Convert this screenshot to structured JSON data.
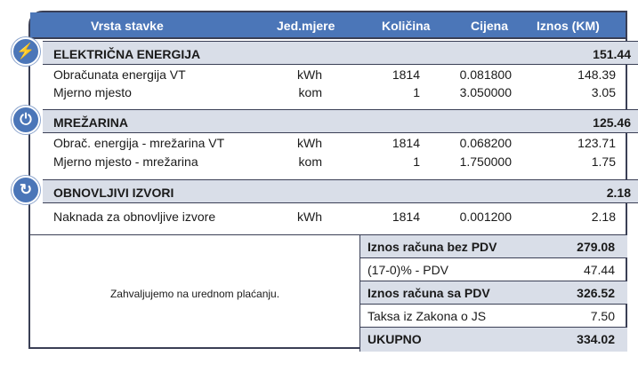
{
  "header": {
    "item": "Vrsta stavke",
    "unit": "Jed.mjere",
    "qty": "Količina",
    "price": "Cijena",
    "amount": "Iznos (KM)"
  },
  "sections": [
    {
      "title": "ELEKTRIČNA ENERGIJA",
      "total": "151.44",
      "icon": "lightning-icon",
      "rows": [
        {
          "name": "Obračunata energija VT",
          "unit": "kWh",
          "qty": "1814",
          "price": "0.081800",
          "amount": "148.39"
        },
        {
          "name": "Mjerno mjesto",
          "unit": "kom",
          "qty": "1",
          "price": "3.050000",
          "amount": "3.05"
        }
      ]
    },
    {
      "title": "MREŽARINA",
      "total": "125.46",
      "icon": "plug-icon",
      "rows": [
        {
          "name": "Obrač. energija - mrežarina VT",
          "unit": "kWh",
          "qty": "1814",
          "price": "0.068200",
          "amount": "123.71"
        },
        {
          "name": "Mjerno mjesto - mrežarina",
          "unit": "kom",
          "qty": "1",
          "price": "1.750000",
          "amount": "1.75"
        }
      ]
    },
    {
      "title": "OBNOVLJIVI IZVORI",
      "total": "2.18",
      "icon": "renewable-icon",
      "rows": [
        {
          "name": "Naknada za obnovljive izvore",
          "unit": "kWh",
          "qty": "1814",
          "price": "0.001200",
          "amount": "2.18"
        }
      ]
    }
  ],
  "thanks": "Zahvaljujemo na urednom plaćanju.",
  "summary": [
    {
      "label": "Iznos računa bez PDV",
      "value": "279.08"
    },
    {
      "label": "(17-0)% - PDV",
      "value": "47.44"
    },
    {
      "label": "Iznos računa sa PDV",
      "value": "326.52"
    },
    {
      "label": "Taksa iz Zakona o JS",
      "value": "7.50"
    },
    {
      "label": "UKUPNO",
      "value": "334.02"
    }
  ],
  "colors": {
    "header": "#4b76b8",
    "section": "#d9dee8",
    "border": "#3a3f55"
  }
}
